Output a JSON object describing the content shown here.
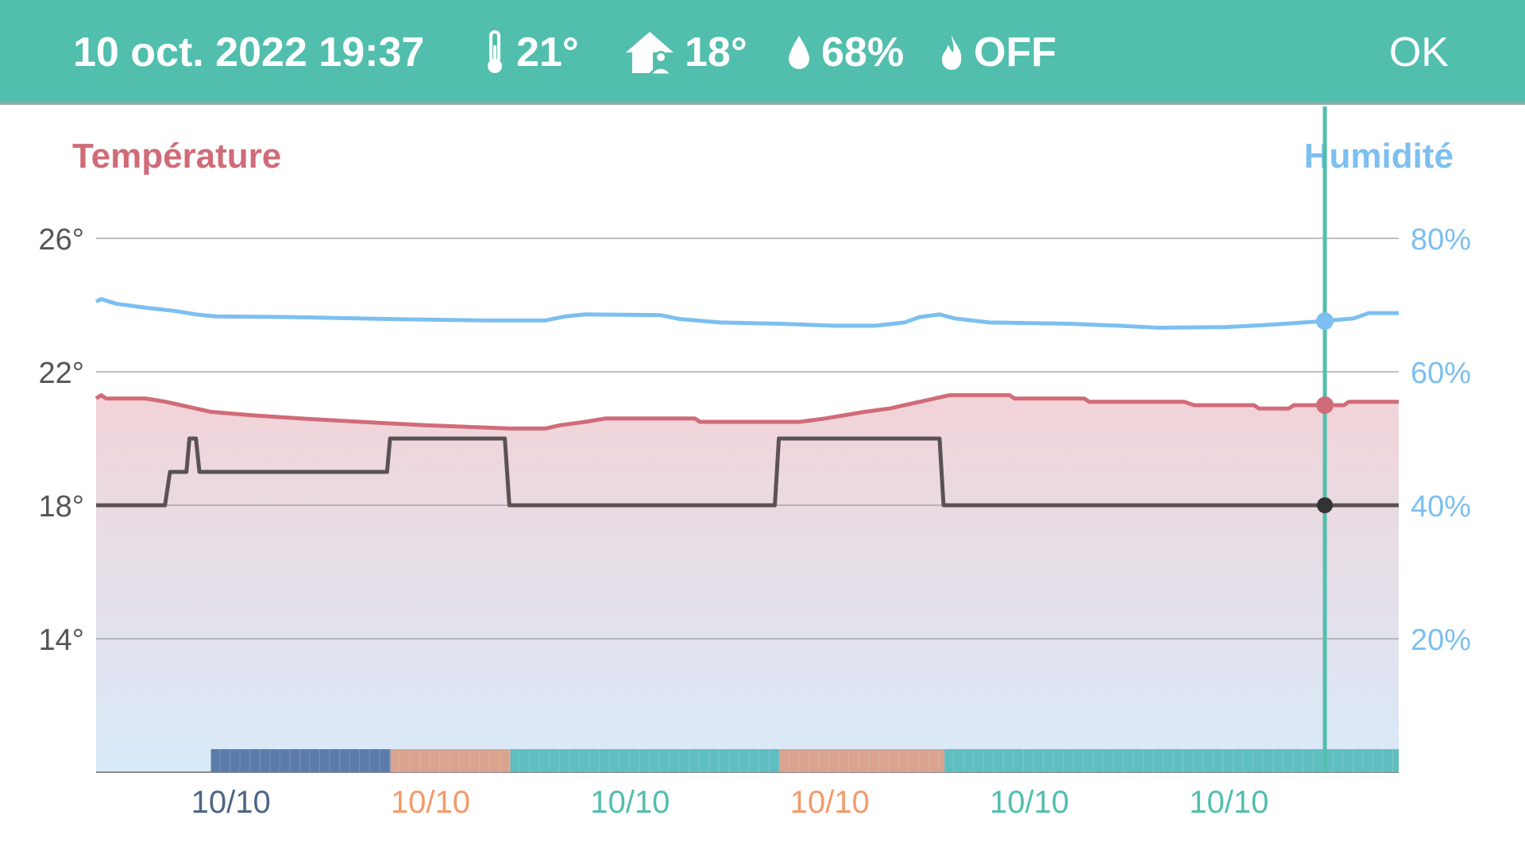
{
  "header": {
    "datetime": "10 oct. 2022 19:37",
    "indoor_temp": "21°",
    "indoor_temp_icon": "thermometer-icon",
    "setpoint": "18°",
    "setpoint_icon": "home-person-icon",
    "humidity": "68%",
    "humidity_icon": "water-drop-icon",
    "heating": "OFF",
    "heating_icon": "flame-icon",
    "ok_label": "OK",
    "background_color": "#52bead"
  },
  "chart_data": {
    "type": "line",
    "title_left": "Température",
    "title_right": "Humidité",
    "y_left": {
      "ticks": [
        26,
        22,
        18,
        14
      ],
      "tick_labels": [
        "26°",
        "22°",
        "18°",
        "14°"
      ],
      "range": [
        10,
        26
      ],
      "color": "#555555"
    },
    "y_right": {
      "ticks": [
        80,
        60,
        40,
        20
      ],
      "tick_labels": [
        "80%",
        "60%",
        "40%",
        "20%"
      ],
      "range": [
        0,
        80
      ],
      "color": "#7cbff0"
    },
    "x_unit": "hours since 09/10 00:00",
    "xlim": [
      19.0,
      45.1
    ],
    "x_ticks": [
      {
        "x": 21.7,
        "label": "10/10",
        "color": "#4e6585"
      },
      {
        "x": 25.7,
        "label": "10/10",
        "color": "#f39a6a"
      },
      {
        "x": 29.7,
        "label": "10/10",
        "color": "#52bead"
      },
      {
        "x": 33.7,
        "label": "10/10",
        "color": "#f39a6a"
      },
      {
        "x": 37.7,
        "label": "10/10",
        "color": "#52bead"
      },
      {
        "x": 41.7,
        "label": "10/10",
        "color": "#52bead"
      }
    ],
    "grid": true,
    "cursor": {
      "x": 43.62,
      "temperature": 21.0,
      "humidity": 67.6,
      "setpoint": 18,
      "color": "#52bead"
    },
    "series": [
      {
        "key": "temperature",
        "axis": "left",
        "color": "#d06c78",
        "fill": true,
        "points": [
          [
            19.0,
            21.2
          ],
          [
            19.1,
            21.3
          ],
          [
            19.2,
            21.2
          ],
          [
            20.0,
            21.2
          ],
          [
            20.4,
            21.1
          ],
          [
            20.7,
            21.0
          ],
          [
            21.0,
            20.9
          ],
          [
            21.3,
            20.8
          ],
          [
            22.1,
            20.7
          ],
          [
            23.1,
            20.6
          ],
          [
            24.3,
            20.5
          ],
          [
            25.6,
            20.4
          ],
          [
            27.3,
            20.3
          ],
          [
            28.0,
            20.3
          ],
          [
            28.3,
            20.4
          ],
          [
            28.8,
            20.5
          ],
          [
            29.2,
            20.6
          ],
          [
            31.0,
            20.6
          ],
          [
            31.1,
            20.5
          ],
          [
            33.1,
            20.5
          ],
          [
            33.6,
            20.6
          ],
          [
            34.0,
            20.7
          ],
          [
            34.4,
            20.8
          ],
          [
            34.9,
            20.9
          ],
          [
            35.5,
            21.1
          ],
          [
            36.1,
            21.3
          ],
          [
            37.3,
            21.3
          ],
          [
            37.4,
            21.2
          ],
          [
            38.8,
            21.2
          ],
          [
            38.9,
            21.1
          ],
          [
            40.8,
            21.1
          ],
          [
            41.0,
            21.0
          ],
          [
            42.2,
            21.0
          ],
          [
            42.3,
            20.9
          ],
          [
            42.9,
            20.9
          ],
          [
            43.0,
            21.0
          ],
          [
            44.0,
            21.0
          ],
          [
            44.1,
            21.1
          ],
          [
            45.1,
            21.1
          ]
        ]
      },
      {
        "key": "humidity",
        "axis": "right",
        "color": "#7cbff0",
        "fill": false,
        "points": [
          [
            19.0,
            70.5
          ],
          [
            19.1,
            70.9
          ],
          [
            19.4,
            70.2
          ],
          [
            20.0,
            69.6
          ],
          [
            20.6,
            69.1
          ],
          [
            21.0,
            68.6
          ],
          [
            21.4,
            68.3
          ],
          [
            22.9,
            68.2
          ],
          [
            24.9,
            67.9
          ],
          [
            26.8,
            67.7
          ],
          [
            28.0,
            67.7
          ],
          [
            28.4,
            68.3
          ],
          [
            28.8,
            68.6
          ],
          [
            30.3,
            68.5
          ],
          [
            30.7,
            67.9
          ],
          [
            31.5,
            67.4
          ],
          [
            32.7,
            67.2
          ],
          [
            33.8,
            66.9
          ],
          [
            34.6,
            66.9
          ],
          [
            35.2,
            67.4
          ],
          [
            35.5,
            68.2
          ],
          [
            35.9,
            68.6
          ],
          [
            36.2,
            68.0
          ],
          [
            36.9,
            67.4
          ],
          [
            38.5,
            67.2
          ],
          [
            39.5,
            66.9
          ],
          [
            40.3,
            66.6
          ],
          [
            41.6,
            66.7
          ],
          [
            42.4,
            67.0
          ],
          [
            43.2,
            67.4
          ],
          [
            43.6,
            67.6
          ],
          [
            44.2,
            68.0
          ],
          [
            44.5,
            68.8
          ],
          [
            45.1,
            68.8
          ]
        ]
      },
      {
        "key": "setpoint",
        "axis": "left",
        "color": "#5a5253",
        "fill": false,
        "points": [
          [
            19.0,
            18
          ],
          [
            20.38,
            18
          ],
          [
            20.48,
            19
          ],
          [
            20.81,
            19
          ],
          [
            20.87,
            20
          ],
          [
            21.0,
            20
          ],
          [
            21.07,
            19
          ],
          [
            24.83,
            19
          ],
          [
            24.89,
            20
          ],
          [
            27.19,
            20
          ],
          [
            27.28,
            18
          ],
          [
            32.6,
            18
          ],
          [
            32.68,
            20
          ],
          [
            35.9,
            20
          ],
          [
            35.98,
            18
          ],
          [
            45.1,
            18
          ]
        ]
      }
    ],
    "mode_band": [
      {
        "start": 21.3,
        "end": 24.9,
        "color": "#5b7caa"
      },
      {
        "start": 24.9,
        "end": 27.3,
        "color": "#d9a38f"
      },
      {
        "start": 27.3,
        "end": 32.7,
        "color": "#5fbec0"
      },
      {
        "start": 32.7,
        "end": 36.0,
        "color": "#d9a38f"
      },
      {
        "start": 36.0,
        "end": 45.1,
        "color": "#5fbec0"
      }
    ]
  }
}
